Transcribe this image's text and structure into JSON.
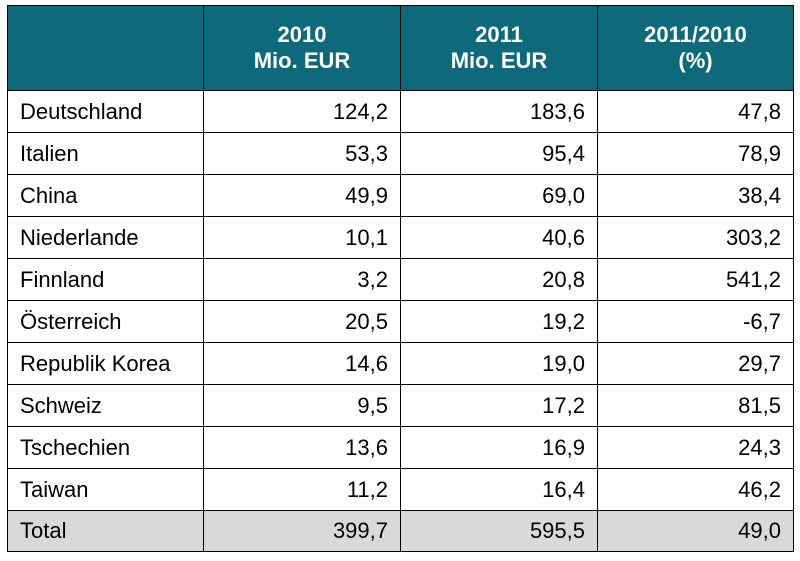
{
  "chart_data": {
    "type": "table",
    "columns": [
      "",
      "2010 Mio. EUR",
      "2011 Mio. EUR",
      "2011/2010 (%)"
    ],
    "header_lines": [
      [],
      [
        "2010",
        "Mio. EUR"
      ],
      [
        "2011",
        "Mio. EUR"
      ],
      [
        "2011/2010",
        "(%)"
      ]
    ],
    "rows": [
      [
        "Deutschland",
        "124,2",
        "183,6",
        "47,8"
      ],
      [
        "Italien",
        "53,3",
        "95,4",
        "78,9"
      ],
      [
        "China",
        "49,9",
        "69,0",
        "38,4"
      ],
      [
        "Niederlande",
        "10,1",
        "40,6",
        "303,2"
      ],
      [
        "Finnland",
        "3,2",
        "20,8",
        "541,2"
      ],
      [
        "Österreich",
        "20,5",
        "19,2",
        "-6,7"
      ],
      [
        "Republik Korea",
        "14,6",
        "19,0",
        "29,7"
      ],
      [
        "Schweiz",
        "9,5",
        "17,2",
        "81,5"
      ],
      [
        "Tschechien",
        "13,6",
        "16,9",
        "24,3"
      ],
      [
        "Taiwan",
        "11,2",
        "16,4",
        "46,2"
      ]
    ],
    "total": [
      "Total",
      "399,7",
      "595,5",
      "49,0"
    ],
    "colors": {
      "header_background": "#0e6a7a",
      "header_text": "#ffffff",
      "total_background": "#d9d9d9",
      "border": "#000000"
    }
  }
}
